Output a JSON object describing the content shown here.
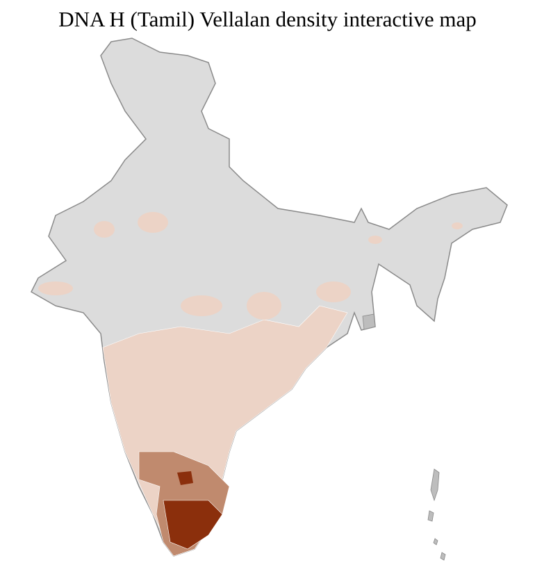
{
  "title": "DNA H (Tamil) Vellalan density interactive map"
}
